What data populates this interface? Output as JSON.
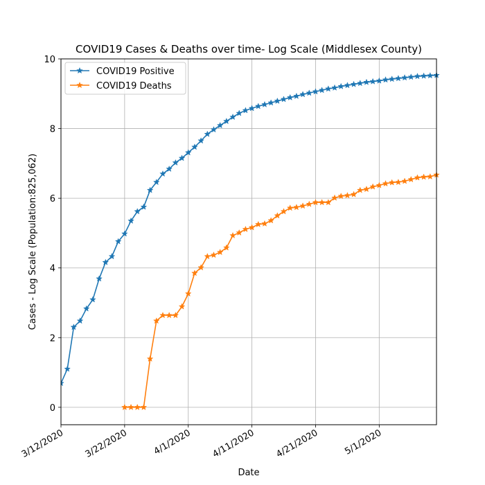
{
  "chart_data": {
    "type": "line",
    "title": "COVID19 Cases & Deaths over time- Log Scale (Middlesex County)",
    "xlabel": "Date",
    "ylabel": "Cases - Log Scale (Population:825,062)",
    "x_start": "3/12/2020",
    "xlim": [
      "3/12/2020",
      "5/10/2020"
    ],
    "ylim": [
      -0.5,
      10
    ],
    "x_ticks": [
      "3/12/2020",
      "3/22/2020",
      "4/1/2020",
      "4/11/2020",
      "4/21/2020",
      "5/1/2020"
    ],
    "y_ticks": [
      0,
      2,
      4,
      6,
      8,
      10
    ],
    "grid": true,
    "legend": "top-left",
    "series": [
      {
        "name": "COVID19 Positive",
        "color": "#1f77b4",
        "marker": "star",
        "start": "3/12/2020",
        "values": [
          0.69,
          1.1,
          2.3,
          2.48,
          2.83,
          3.09,
          3.69,
          4.16,
          4.33,
          4.76,
          4.98,
          5.35,
          5.62,
          5.75,
          6.23,
          6.46,
          6.7,
          6.84,
          7.02,
          7.15,
          7.31,
          7.47,
          7.65,
          7.84,
          7.97,
          8.09,
          8.21,
          8.33,
          8.44,
          8.52,
          8.58,
          8.64,
          8.69,
          8.74,
          8.79,
          8.84,
          8.89,
          8.93,
          8.98,
          9.02,
          9.06,
          9.1,
          9.14,
          9.17,
          9.21,
          9.24,
          9.27,
          9.3,
          9.33,
          9.35,
          9.37,
          9.4,
          9.42,
          9.44,
          9.46,
          9.48,
          9.5,
          9.51,
          9.52,
          9.53
        ]
      },
      {
        "name": "COVID19 Deaths",
        "color": "#ff7f0e",
        "marker": "star",
        "start": "3/22/2020",
        "values": [
          0.0,
          0.0,
          0.0,
          0.0,
          1.39,
          2.48,
          2.64,
          2.64,
          2.64,
          2.89,
          3.26,
          3.85,
          4.01,
          4.33,
          4.37,
          4.45,
          4.58,
          4.93,
          5.01,
          5.11,
          5.16,
          5.25,
          5.27,
          5.36,
          5.5,
          5.62,
          5.72,
          5.74,
          5.78,
          5.83,
          5.88,
          5.88,
          5.88,
          6.01,
          6.06,
          6.08,
          6.11,
          6.23,
          6.26,
          6.33,
          6.37,
          6.42,
          6.45,
          6.46,
          6.49,
          6.54,
          6.59,
          6.61,
          6.62,
          6.67
        ]
      }
    ]
  }
}
